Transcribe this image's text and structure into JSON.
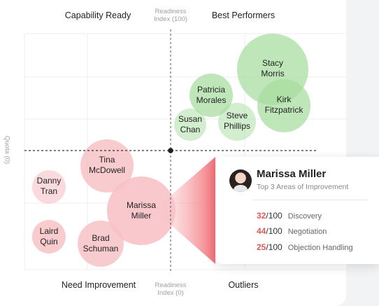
{
  "quadrants": {
    "top_left": "Capability Ready",
    "top_right": "Best Performers",
    "bottom_left": "Need Improvement",
    "bottom_right": "Outliers"
  },
  "axes": {
    "x_top": [
      "Readiness",
      "Index (100)"
    ],
    "x_bottom": [
      "Readiness",
      "Index (0)"
    ],
    "y": "Quota (0)"
  },
  "colors": {
    "green": "#a8dea0",
    "red": "#f7c2c6",
    "score_red": "#e05a5a"
  },
  "bubbles": [
    {
      "name": [
        "Stacy",
        "Morris"
      ],
      "group": "green"
    },
    {
      "name": [
        "Kirk",
        "Fitzpatrick"
      ],
      "group": "green"
    },
    {
      "name": [
        "Patricia",
        "Morales"
      ],
      "group": "green"
    },
    {
      "name": [
        "Susan",
        "Chan"
      ],
      "group": "green"
    },
    {
      "name": [
        "Steve",
        "Phillips"
      ],
      "group": "green"
    },
    {
      "name": [
        "Tina",
        "McDowell"
      ],
      "group": "red"
    },
    {
      "name": [
        "Danny",
        "Tran"
      ],
      "group": "red"
    },
    {
      "name": [
        "Marissa",
        "Miller"
      ],
      "group": "red"
    },
    {
      "name": [
        "Laird",
        "Quin"
      ],
      "group": "red"
    },
    {
      "name": [
        "Brad",
        "Schuman"
      ],
      "group": "red"
    }
  ],
  "tooltip": {
    "name": "Marissa Miller",
    "subtitle": "Top 3 Areas of Improvement",
    "items": [
      {
        "score": "32",
        "max": "/100",
        "area": "Discovery"
      },
      {
        "score": "44",
        "max": "/100",
        "area": "Negotiation"
      },
      {
        "score": "25",
        "max": "/100",
        "area": "Objection Handling"
      }
    ]
  }
}
